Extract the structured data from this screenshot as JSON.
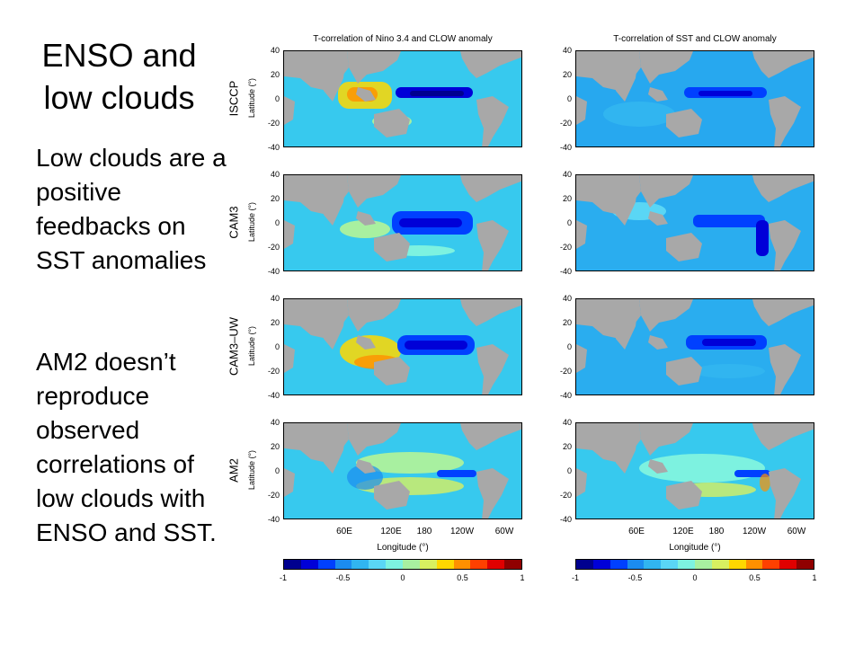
{
  "slide": {
    "title": "ENSO and low clouds",
    "bullet1": "Low clouds are a positive feedbacks on SST anomalies",
    "bullet2": "AM2 doesn’t reproduce observed correlations of low clouds with ENSO and SST."
  },
  "figure": {
    "left_title": "T-correlation of Nino 3.4 and CLOW anomaly",
    "right_title": "T-correlation of SST and CLOW anomaly",
    "rows": [
      "ISCCP",
      "CAM3",
      "CAM3–UW",
      "AM2"
    ],
    "latitude_label": "Latitude (°)",
    "y_ticks": [
      "40",
      "20",
      "0",
      "-20",
      "-40"
    ],
    "x_ticks": [
      "60E",
      "120E",
      "180",
      "120W",
      "60W"
    ],
    "longitude_label": "Longitude (°)",
    "colorbar_ticks": [
      "-1",
      "-0.5",
      "0",
      "0.5",
      "1"
    ],
    "colorbar_colors": [
      "#00008f",
      "#0000d8",
      "#0040ff",
      "#1b8cf0",
      "#31b5f0",
      "#5ad6f5",
      "#7df2e0",
      "#a8f0a0",
      "#d8f060",
      "#ffd800",
      "#ff9000",
      "#ff4000",
      "#e00000",
      "#900000"
    ]
  }
}
